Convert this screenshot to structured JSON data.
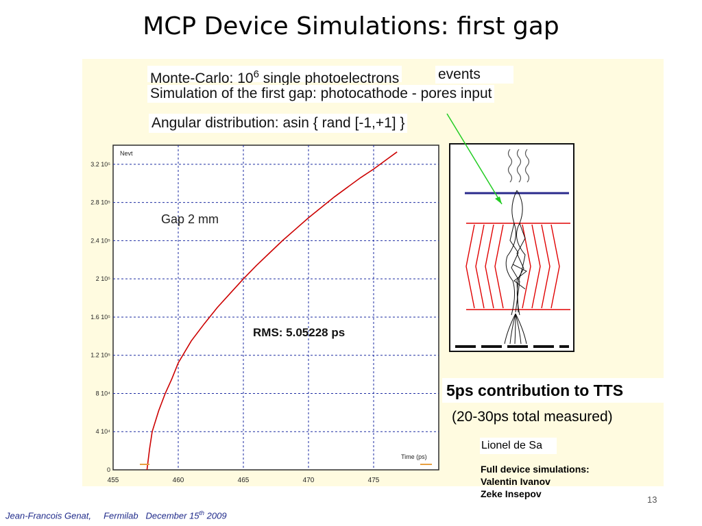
{
  "slide": {
    "title": "MCP Device Simulations: first gap",
    "number": "13",
    "footer": {
      "author": "Jean-Francois Genat,",
      "lab": "Fermilab",
      "date_prefix": "December 15",
      "date_sup": "th",
      "date_year": " 2009"
    }
  },
  "header": {
    "line1_pre": "Monte-Carlo: 10",
    "line1_exp": "6",
    "line1_post": " single photoelectrons",
    "line1_events": "events",
    "line2": "Simulation of the first gap: photocathode  -  pores input",
    "line3": "Angular distribution: asin { rand [-1,+1] }"
  },
  "chart_data": {
    "type": "line",
    "title": "",
    "xlabel": "Time (ps)",
    "ylabel": "Nevt",
    "xlim": [
      455,
      480
    ],
    "ylim": [
      0,
      340000
    ],
    "x_ticks": [
      455,
      460,
      465,
      470,
      475
    ],
    "y_ticks": [
      {
        "value": 0,
        "label": "0"
      },
      {
        "value": 40000,
        "label": "4 10⁴"
      },
      {
        "value": 80000,
        "label": "8 10⁴"
      },
      {
        "value": 120000,
        "label": "1.2 10⁵"
      },
      {
        "value": 160000,
        "label": "1.6 10⁵"
      },
      {
        "value": 200000,
        "label": "2 10⁵"
      },
      {
        "value": 240000,
        "label": "2.4 10⁵"
      },
      {
        "value": 280000,
        "label": "2.8 10⁵"
      },
      {
        "value": 320000,
        "label": "3.2 10⁵"
      }
    ],
    "grid": true,
    "series": [
      {
        "color": "#cc0000",
        "x": [
          457.6,
          457.8,
          458.0,
          458.5,
          459.0,
          459.5,
          460.0,
          461.0,
          462.0,
          463.0,
          464.0,
          465.0,
          466.0,
          467.0,
          468.0,
          469.0,
          470.0,
          471.0,
          472.0,
          473.0,
          474.0,
          475.0,
          476.0,
          476.8
        ],
        "y": [
          0,
          22000,
          40000,
          62000,
          80000,
          95000,
          112000,
          135000,
          153000,
          170000,
          185000,
          200000,
          214000,
          227000,
          240000,
          252000,
          264000,
          275000,
          286000,
          296000,
          306000,
          315000,
          325000,
          333000
        ]
      }
    ],
    "annotations": [
      "Gap 2 mm",
      "RMS: 5.05228 ps"
    ]
  },
  "diagram": {
    "label_tts": "5ps contribution to TTS",
    "label_measured": "(20-30ps  total  measured)",
    "credit_sim": "Lionel de Sa",
    "credits_title": "Full device simulations:",
    "credits_names": [
      "Valentin Ivanov",
      "Zeke Insepov"
    ],
    "colors": {
      "plate": "#2a2a8c",
      "pores": "#e00000",
      "arrow": "#22cc22",
      "curve": "#cc0000"
    }
  }
}
